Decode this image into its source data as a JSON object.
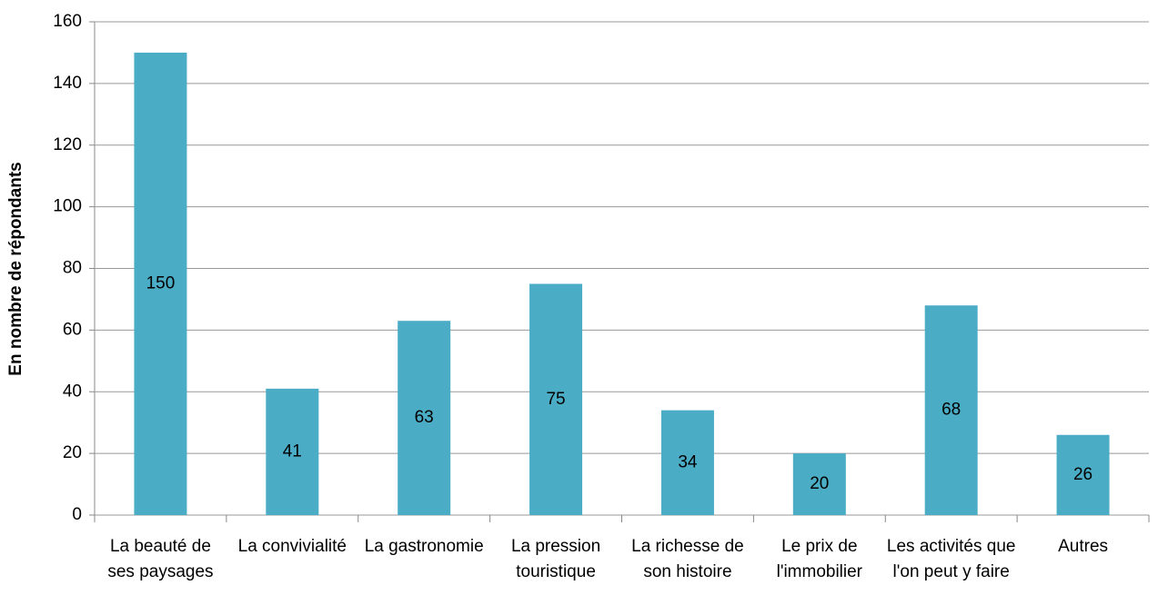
{
  "chart_data": {
    "type": "bar",
    "y_label": "En nombre de répondants",
    "categories": [
      "La beauté de ses paysages",
      "La convivialité",
      "La gastronomie",
      "La pression touristique",
      "La richesse de son histoire",
      "Le prix de l'immobilier",
      "Les activités que l'on peut y faire",
      "Autres"
    ],
    "values": [
      150,
      41,
      63,
      75,
      34,
      20,
      68,
      26
    ],
    "color": "#4bacc6",
    "ylim": [
      0,
      160
    ],
    "yticks": [
      0,
      20,
      40,
      60,
      80,
      100,
      120,
      140,
      160
    ],
    "grid": true
  }
}
